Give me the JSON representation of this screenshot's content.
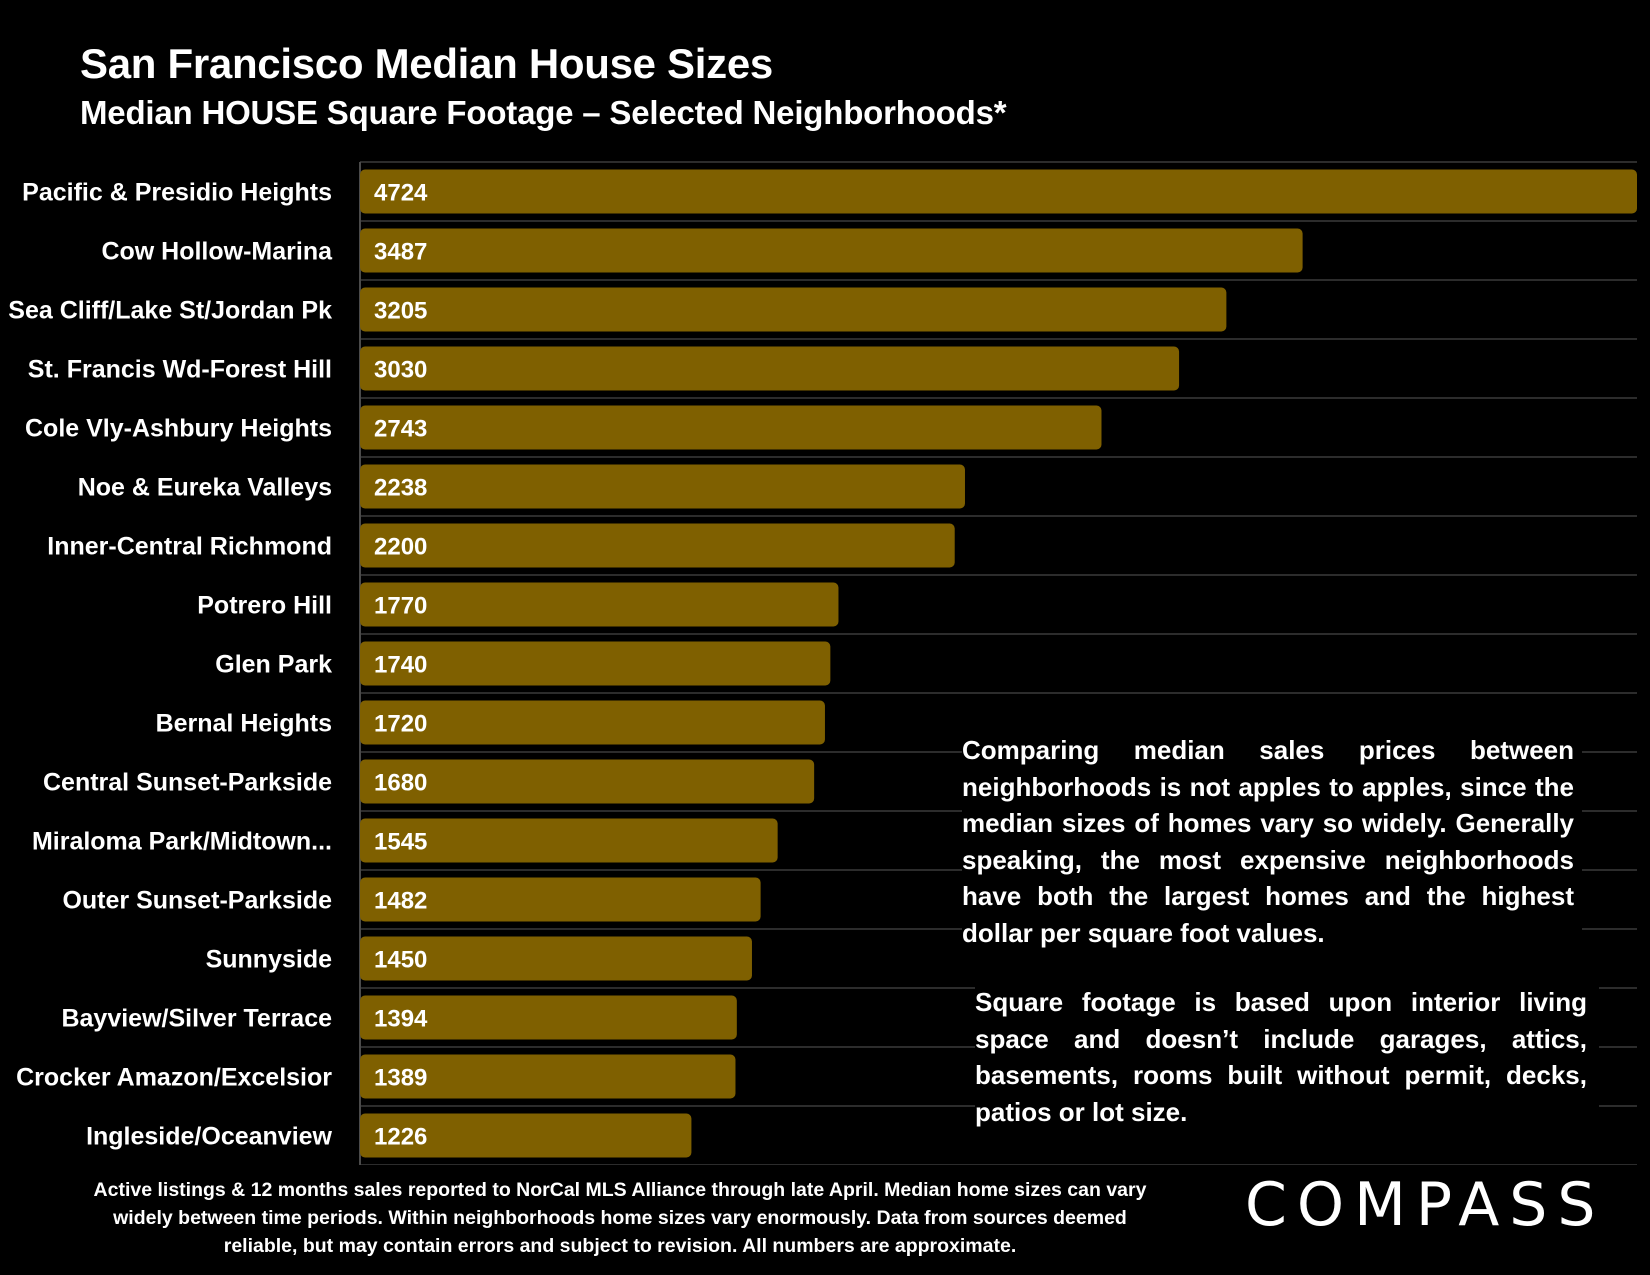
{
  "header": {
    "title": "San Francisco Median House Sizes",
    "subtitle": "Median HOUSE Square Footage – Selected Neighborhoods*"
  },
  "chart_data": {
    "type": "bar",
    "orientation": "horizontal",
    "title": "San Francisco Median House Sizes",
    "subtitle": "Median HOUSE Square Footage – Selected Neighborhoods*",
    "categories": [
      "Pacific & Presidio Heights",
      "Cow Hollow-Marina",
      "Sea Cliff/Lake St/Jordan Pk",
      "St. Francis Wd-Forest Hill",
      "Cole Vly-Ashbury Heights",
      "Noe & Eureka Valleys",
      "Inner-Central Richmond",
      "Potrero Hill",
      "Glen Park",
      "Bernal Heights",
      "Central Sunset-Parkside",
      "Miraloma Park/Midtown...",
      "Outer Sunset-Parkside",
      "Sunnyside",
      "Bayview/Silver Terrace",
      "Crocker Amazon/Excelsior",
      "Ingleside/Oceanview"
    ],
    "values": [
      4724,
      3487,
      3205,
      3030,
      2743,
      2238,
      2200,
      1770,
      1740,
      1720,
      1680,
      1545,
      1482,
      1450,
      1394,
      1389,
      1226
    ],
    "xlim": [
      0,
      4724
    ],
    "bar_color": "#7f6000",
    "gridlines": true,
    "data_labels": true
  },
  "notes": {
    "comparison": "Comparing median sales prices between neighborhoods is not apples to apples, since the median sizes of homes vary so widely. Generally speaking, the most expensive neighborhoods have both the largest homes and the highest dollar per square foot values.",
    "square_footage": "Square footage is based upon interior living space and doesn’t include garages, attics, basements, rooms built without permit, decks, patios or lot size."
  },
  "footnote": "Active listings & 12 months sales reported to NorCal MLS Alliance through late April. Median home sizes can vary widely between time periods. Within neighborhoods home sizes vary enormously. Data from sources deemed reliable, but may contain errors and subject to revision. All numbers are approximate.",
  "brand": {
    "logo_text": "COMPASS"
  }
}
